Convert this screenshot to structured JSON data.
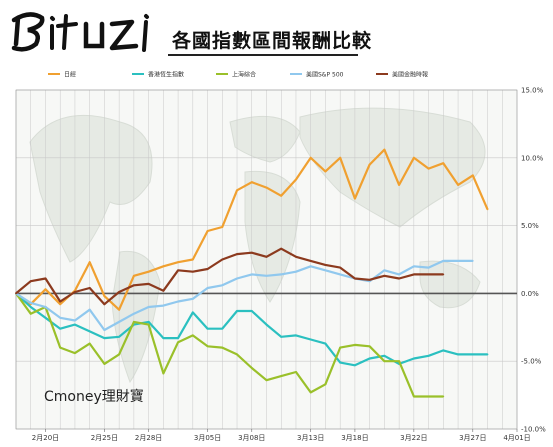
{
  "header": {
    "logo_text": "Bituzi",
    "title": "各國指數區間報酬比較"
  },
  "watermark": "Cmoney理財寶",
  "colors": {
    "background": "#ffffff",
    "map": "#e6eae4",
    "grid": "#c8c8c8",
    "zero_line": "#555555"
  },
  "chart_data": {
    "type": "line",
    "title": "各國指數區間報酬比較",
    "legend_position": "top",
    "grid": true,
    "y_axis_position": "right",
    "ylim": [
      -10,
      15
    ],
    "y_ticks": [
      15,
      10,
      5,
      0,
      -5,
      -10
    ],
    "y_tick_labels": [
      "15.0%",
      "10.0%",
      "5.0%",
      "0.0%",
      "-5.0%",
      "-10.0%"
    ],
    "x_tick_labels": [
      "2月20日",
      "2月25日",
      "2月28日",
      "3月05日",
      "3月08日",
      "3月13日",
      "3月18日",
      "3月22日",
      "3月27日",
      "4月01日"
    ],
    "x_tick_index": [
      2,
      6,
      9,
      13,
      16,
      20,
      23,
      27,
      31,
      34
    ],
    "series": [
      {
        "name": "日經",
        "color": "#f0a030",
        "values": [
          0,
          -0.8,
          0.3,
          -0.8,
          0.2,
          2.3,
          -0.2,
          -1.2,
          1.3,
          1.6,
          2.0,
          2.3,
          2.5,
          4.6,
          4.9,
          7.6,
          8.2,
          7.8,
          7.2,
          8.4,
          10.0,
          9.0,
          10.0,
          7.0,
          9.5,
          10.6,
          8.0,
          10.0,
          9.2,
          9.6,
          8.0,
          8.7,
          6.2
        ]
      },
      {
        "name": "香港恆生指數",
        "color": "#2bc0c0",
        "values": [
          0,
          -1.0,
          -1.8,
          -2.6,
          -2.3,
          -2.8,
          -3.3,
          -3.2,
          -2.3,
          -2.1,
          -3.3,
          -3.3,
          -1.4,
          -2.6,
          -2.6,
          -1.3,
          -1.3,
          -2.3,
          -3.2,
          -3.1,
          -3.4,
          -3.7,
          -5.1,
          -5.3,
          -4.8,
          -4.6,
          -5.2,
          -4.8,
          -4.6,
          -4.2,
          -4.5,
          -4.5,
          -4.5
        ]
      },
      {
        "name": "上海綜合",
        "color": "#9ac02a",
        "values": [
          0,
          -1.5,
          -1.0,
          -4.0,
          -4.4,
          -3.7,
          -5.2,
          -4.5,
          -2.1,
          -2.3,
          -5.9,
          -3.6,
          -3.1,
          -3.9,
          -4.0,
          -4.5,
          -5.5,
          -6.4,
          -6.1,
          -5.8,
          -7.3,
          -6.7,
          -4.0,
          -3.8,
          -3.9,
          -5.0,
          -5.0,
          -7.6,
          -7.6,
          -7.6
        ]
      },
      {
        "name": "美國S&P 500",
        "color": "#90c8ee",
        "values": [
          0,
          -0.7,
          -1.0,
          -1.8,
          -2.0,
          -1.2,
          -2.7,
          -2.1,
          -1.5,
          -1.0,
          -0.9,
          -0.6,
          -0.4,
          0.4,
          0.6,
          1.1,
          1.4,
          1.3,
          1.4,
          1.6,
          2.0,
          1.7,
          1.4,
          1.1,
          0.9,
          1.7,
          1.4,
          2.0,
          1.9,
          2.4,
          2.4,
          2.4
        ]
      },
      {
        "name": "美國金融時報",
        "color": "#8c3a1e",
        "values": [
          0,
          0.9,
          1.1,
          -0.6,
          0.1,
          0.4,
          -0.8,
          0.1,
          0.6,
          0.7,
          0.2,
          1.7,
          1.6,
          1.8,
          2.5,
          2.9,
          3.0,
          2.7,
          3.3,
          2.7,
          2.4,
          2.1,
          1.9,
          1.1,
          1.0,
          1.3,
          1.1,
          1.4,
          1.4,
          1.4
        ]
      }
    ]
  }
}
